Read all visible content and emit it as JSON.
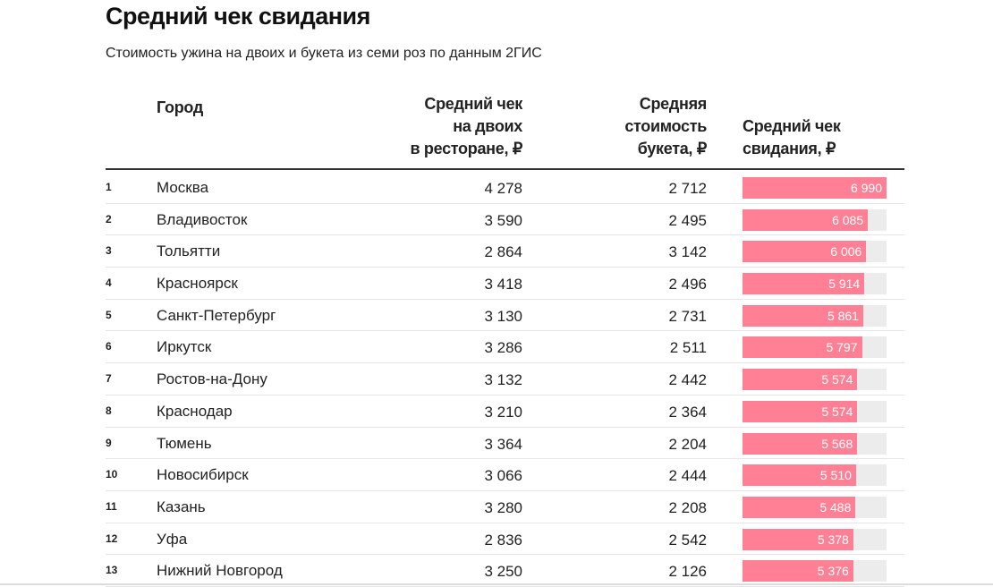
{
  "title": "Средний чек свидания",
  "subtitle": "Стоимость ужина на двоих и букета из семи роз по данным 2ГИС",
  "chart_data": {
    "type": "table",
    "columns": [
      "",
      "Город",
      "Средний чек на двоих в ресторане, ₽",
      "Средняя стоимость букета, ₽",
      "Средний чек свидания, ₽"
    ],
    "header_lines": {
      "city": [
        "Город"
      ],
      "restaurant": [
        "Средний чек",
        "на двоих",
        "в ресторане, ₽"
      ],
      "bouquet": [
        "Средняя",
        "стоимость",
        "букета, ₽"
      ],
      "total": [
        "Средний чек",
        "свидания, ₽"
      ]
    },
    "bar_max": 6990,
    "bar_color": "#ff8095",
    "rows": [
      {
        "rank": "1",
        "city": "Москва",
        "restaurant": "4 278",
        "bouquet": "2 712",
        "total": "6 990",
        "value": 6990
      },
      {
        "rank": "2",
        "city": "Владивосток",
        "restaurant": "3 590",
        "bouquet": "2 495",
        "total": "6 085",
        "value": 6085
      },
      {
        "rank": "3",
        "city": "Тольятти",
        "restaurant": "2 864",
        "bouquet": "3 142",
        "total": "6 006",
        "value": 6006
      },
      {
        "rank": "4",
        "city": "Красноярск",
        "restaurant": "3 418",
        "bouquet": "2 496",
        "total": "5 914",
        "value": 5914
      },
      {
        "rank": "5",
        "city": "Санкт-Петербург",
        "restaurant": "3 130",
        "bouquet": "2 731",
        "total": "5 861",
        "value": 5861
      },
      {
        "rank": "6",
        "city": "Иркутск",
        "restaurant": "3 286",
        "bouquet": "2 511",
        "total": "5 797",
        "value": 5797
      },
      {
        "rank": "7",
        "city": "Ростов-на-Дону",
        "restaurant": "3 132",
        "bouquet": "2 442",
        "total": "5 574",
        "value": 5574
      },
      {
        "rank": "8",
        "city": "Краснодар",
        "restaurant": "3 210",
        "bouquet": "2 364",
        "total": "5 574",
        "value": 5574
      },
      {
        "rank": "9",
        "city": "Тюмень",
        "restaurant": "3 364",
        "bouquet": "2 204",
        "total": "5 568",
        "value": 5568
      },
      {
        "rank": "10",
        "city": "Новосибирск",
        "restaurant": "3 066",
        "bouquet": "2 444",
        "total": "5 510",
        "value": 5510
      },
      {
        "rank": "11",
        "city": "Казань",
        "restaurant": "3 280",
        "bouquet": "2 208",
        "total": "5 488",
        "value": 5488
      },
      {
        "rank": "12",
        "city": "Уфа",
        "restaurant": "2 836",
        "bouquet": "2 542",
        "total": "5 378",
        "value": 5378
      },
      {
        "rank": "13",
        "city": "Нижний Новгород",
        "restaurant": "3 250",
        "bouquet": "2 126",
        "total": "5 376",
        "value": 5376
      }
    ]
  }
}
